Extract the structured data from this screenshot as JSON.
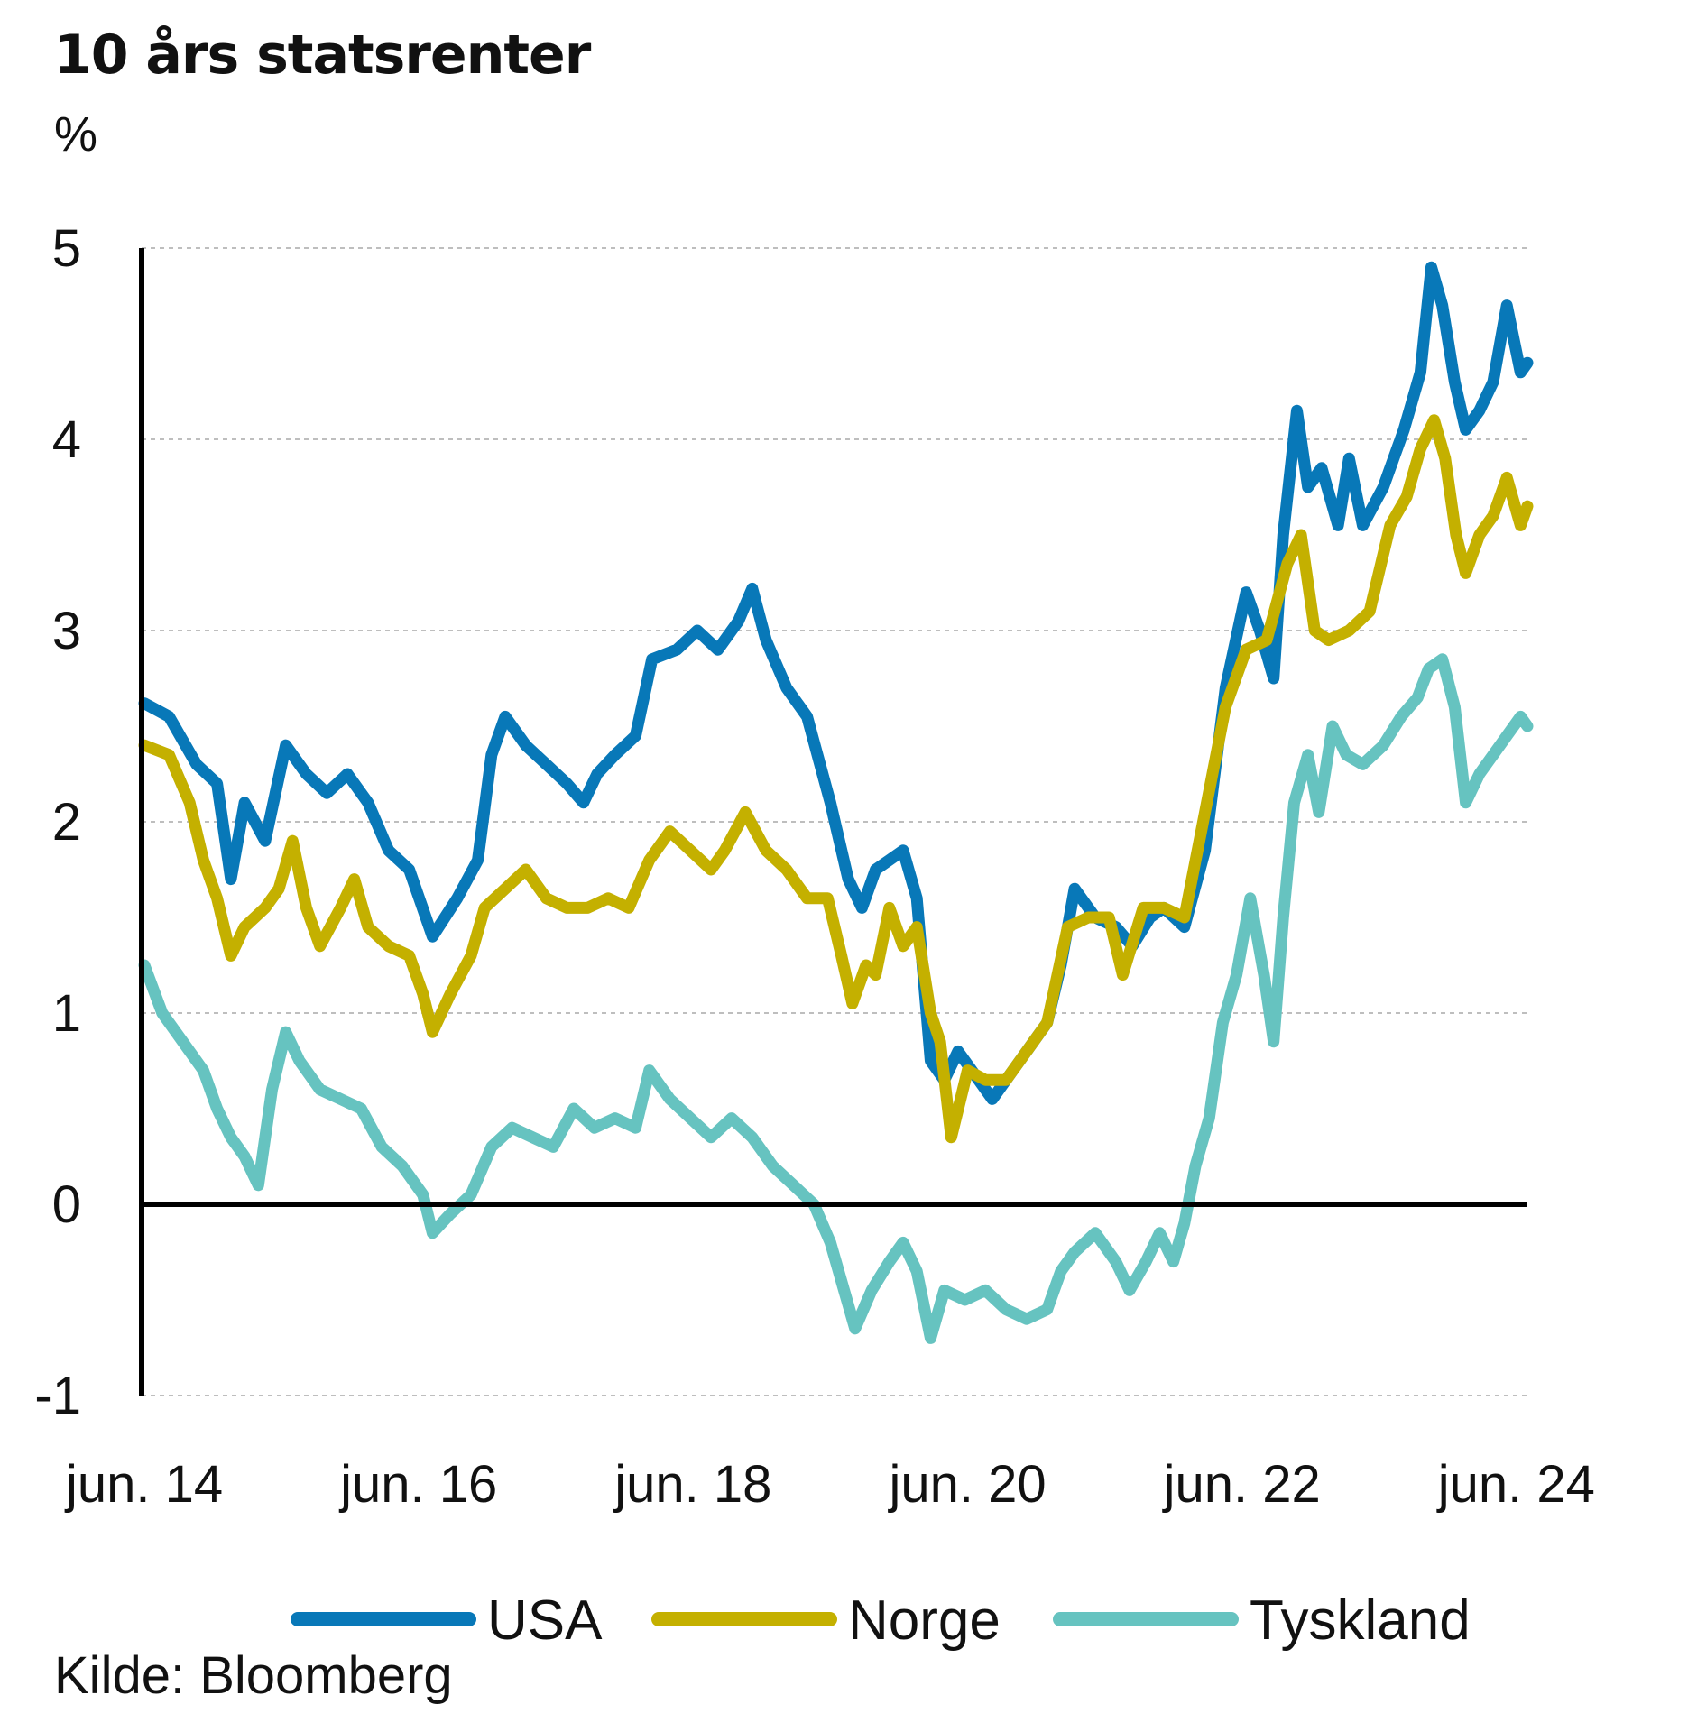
{
  "header": {
    "title": "10 års statsrenter",
    "unit": "%"
  },
  "footer": {
    "source": "Kilde: Bloomberg"
  },
  "chart_data": {
    "type": "line",
    "title": "10 års statsrenter",
    "ylabel": "%",
    "xlabel": "",
    "ylim": [
      -1,
      5
    ],
    "yticks": [
      "5",
      "4",
      "3",
      "2",
      "1",
      "0",
      "-1"
    ],
    "xlim": [
      2014.4,
      2024.5
    ],
    "xticks": [
      {
        "label": "jun. 14",
        "x": 2014.42
      },
      {
        "label": "jun. 16",
        "x": 2016.42
      },
      {
        "label": "jun. 18",
        "x": 2018.42
      },
      {
        "label": "jun. 20",
        "x": 2020.42
      },
      {
        "label": "jun. 22",
        "x": 2022.42
      },
      {
        "label": "jun. 24",
        "x": 2024.42
      }
    ],
    "grid": true,
    "legend": "bottom",
    "series": [
      {
        "name": "USA",
        "color": "#0878b8",
        "points": [
          [
            2014.42,
            2.62
          ],
          [
            2014.6,
            2.55
          ],
          [
            2014.8,
            2.3
          ],
          [
            2014.95,
            2.2
          ],
          [
            2015.05,
            1.7
          ],
          [
            2015.15,
            2.1
          ],
          [
            2015.3,
            1.9
          ],
          [
            2015.45,
            2.4
          ],
          [
            2015.6,
            2.25
          ],
          [
            2015.75,
            2.15
          ],
          [
            2015.9,
            2.25
          ],
          [
            2016.05,
            2.1
          ],
          [
            2016.2,
            1.85
          ],
          [
            2016.35,
            1.75
          ],
          [
            2016.52,
            1.4
          ],
          [
            2016.7,
            1.6
          ],
          [
            2016.85,
            1.8
          ],
          [
            2016.95,
            2.35
          ],
          [
            2017.05,
            2.55
          ],
          [
            2017.2,
            2.4
          ],
          [
            2017.35,
            2.3
          ],
          [
            2017.5,
            2.2
          ],
          [
            2017.62,
            2.1
          ],
          [
            2017.72,
            2.25
          ],
          [
            2017.85,
            2.35
          ],
          [
            2018.0,
            2.45
          ],
          [
            2018.12,
            2.85
          ],
          [
            2018.3,
            2.9
          ],
          [
            2018.45,
            3.0
          ],
          [
            2018.6,
            2.9
          ],
          [
            2018.75,
            3.05
          ],
          [
            2018.85,
            3.22
          ],
          [
            2018.95,
            2.95
          ],
          [
            2019.1,
            2.7
          ],
          [
            2019.25,
            2.55
          ],
          [
            2019.42,
            2.1
          ],
          [
            2019.55,
            1.7
          ],
          [
            2019.65,
            1.55
          ],
          [
            2019.75,
            1.75
          ],
          [
            2019.85,
            1.8
          ],
          [
            2019.95,
            1.85
          ],
          [
            2020.05,
            1.6
          ],
          [
            2020.15,
            0.75
          ],
          [
            2020.25,
            0.65
          ],
          [
            2020.35,
            0.8
          ],
          [
            2020.5,
            0.65
          ],
          [
            2020.6,
            0.55
          ],
          [
            2020.75,
            0.7
          ],
          [
            2020.9,
            0.85
          ],
          [
            2021.0,
            0.95
          ],
          [
            2021.1,
            1.25
          ],
          [
            2021.2,
            1.65
          ],
          [
            2021.35,
            1.5
          ],
          [
            2021.5,
            1.45
          ],
          [
            2021.62,
            1.35
          ],
          [
            2021.75,
            1.5
          ],
          [
            2021.85,
            1.55
          ],
          [
            2022.0,
            1.45
          ],
          [
            2022.15,
            1.85
          ],
          [
            2022.3,
            2.7
          ],
          [
            2022.45,
            3.2
          ],
          [
            2022.55,
            3.0
          ],
          [
            2022.65,
            2.75
          ],
          [
            2022.72,
            3.5
          ],
          [
            2022.82,
            4.15
          ],
          [
            2022.9,
            3.75
          ],
          [
            2023.0,
            3.85
          ],
          [
            2023.12,
            3.55
          ],
          [
            2023.2,
            3.9
          ],
          [
            2023.3,
            3.55
          ],
          [
            2023.45,
            3.75
          ],
          [
            2023.6,
            4.05
          ],
          [
            2023.72,
            4.35
          ],
          [
            2023.8,
            4.9
          ],
          [
            2023.88,
            4.7
          ],
          [
            2023.97,
            4.3
          ],
          [
            2024.05,
            4.05
          ],
          [
            2024.15,
            4.15
          ],
          [
            2024.25,
            4.3
          ],
          [
            2024.35,
            4.7
          ],
          [
            2024.45,
            4.35
          ],
          [
            2024.5,
            4.4
          ]
        ]
      },
      {
        "name": "Norge",
        "color": "#c4b000",
        "points": [
          [
            2014.42,
            2.4
          ],
          [
            2014.6,
            2.35
          ],
          [
            2014.75,
            2.1
          ],
          [
            2014.85,
            1.8
          ],
          [
            2014.95,
            1.6
          ],
          [
            2015.05,
            1.3
          ],
          [
            2015.15,
            1.45
          ],
          [
            2015.3,
            1.55
          ],
          [
            2015.4,
            1.65
          ],
          [
            2015.5,
            1.9
          ],
          [
            2015.6,
            1.55
          ],
          [
            2015.7,
            1.35
          ],
          [
            2015.85,
            1.55
          ],
          [
            2015.95,
            1.7
          ],
          [
            2016.05,
            1.45
          ],
          [
            2016.2,
            1.35
          ],
          [
            2016.35,
            1.3
          ],
          [
            2016.45,
            1.1
          ],
          [
            2016.52,
            0.9
          ],
          [
            2016.65,
            1.1
          ],
          [
            2016.8,
            1.3
          ],
          [
            2016.9,
            1.55
          ],
          [
            2017.05,
            1.65
          ],
          [
            2017.2,
            1.75
          ],
          [
            2017.35,
            1.6
          ],
          [
            2017.5,
            1.55
          ],
          [
            2017.65,
            1.55
          ],
          [
            2017.8,
            1.6
          ],
          [
            2017.95,
            1.55
          ],
          [
            2018.1,
            1.8
          ],
          [
            2018.25,
            1.95
          ],
          [
            2018.4,
            1.85
          ],
          [
            2018.55,
            1.75
          ],
          [
            2018.65,
            1.85
          ],
          [
            2018.8,
            2.05
          ],
          [
            2018.95,
            1.85
          ],
          [
            2019.1,
            1.75
          ],
          [
            2019.25,
            1.6
          ],
          [
            2019.4,
            1.6
          ],
          [
            2019.5,
            1.3
          ],
          [
            2019.58,
            1.05
          ],
          [
            2019.68,
            1.25
          ],
          [
            2019.75,
            1.2
          ],
          [
            2019.85,
            1.55
          ],
          [
            2019.95,
            1.35
          ],
          [
            2020.05,
            1.45
          ],
          [
            2020.15,
            1.0
          ],
          [
            2020.22,
            0.85
          ],
          [
            2020.3,
            0.35
          ],
          [
            2020.42,
            0.7
          ],
          [
            2020.55,
            0.65
          ],
          [
            2020.7,
            0.65
          ],
          [
            2020.85,
            0.8
          ],
          [
            2021.0,
            0.95
          ],
          [
            2021.15,
            1.45
          ],
          [
            2021.3,
            1.5
          ],
          [
            2021.45,
            1.5
          ],
          [
            2021.55,
            1.2
          ],
          [
            2021.7,
            1.55
          ],
          [
            2021.85,
            1.55
          ],
          [
            2022.0,
            1.5
          ],
          [
            2022.15,
            2.05
          ],
          [
            2022.3,
            2.6
          ],
          [
            2022.45,
            2.9
          ],
          [
            2022.6,
            2.95
          ],
          [
            2022.75,
            3.35
          ],
          [
            2022.85,
            3.5
          ],
          [
            2022.95,
            3.0
          ],
          [
            2023.05,
            2.95
          ],
          [
            2023.2,
            3.0
          ],
          [
            2023.35,
            3.1
          ],
          [
            2023.5,
            3.55
          ],
          [
            2023.62,
            3.7
          ],
          [
            2023.72,
            3.95
          ],
          [
            2023.82,
            4.1
          ],
          [
            2023.9,
            3.9
          ],
          [
            2023.98,
            3.5
          ],
          [
            2024.05,
            3.3
          ],
          [
            2024.15,
            3.5
          ],
          [
            2024.25,
            3.6
          ],
          [
            2024.35,
            3.8
          ],
          [
            2024.45,
            3.55
          ],
          [
            2024.5,
            3.65
          ]
        ]
      },
      {
        "name": "Tyskland",
        "color": "#66c3c0",
        "points": [
          [
            2014.42,
            1.25
          ],
          [
            2014.55,
            1.0
          ],
          [
            2014.7,
            0.85
          ],
          [
            2014.85,
            0.7
          ],
          [
            2014.95,
            0.5
          ],
          [
            2015.05,
            0.35
          ],
          [
            2015.15,
            0.25
          ],
          [
            2015.25,
            0.1
          ],
          [
            2015.35,
            0.6
          ],
          [
            2015.45,
            0.9
          ],
          [
            2015.55,
            0.75
          ],
          [
            2015.7,
            0.6
          ],
          [
            2015.85,
            0.55
          ],
          [
            2016.0,
            0.5
          ],
          [
            2016.15,
            0.3
          ],
          [
            2016.3,
            0.2
          ],
          [
            2016.45,
            0.05
          ],
          [
            2016.52,
            -0.15
          ],
          [
            2016.65,
            -0.05
          ],
          [
            2016.8,
            0.05
          ],
          [
            2016.95,
            0.3
          ],
          [
            2017.1,
            0.4
          ],
          [
            2017.25,
            0.35
          ],
          [
            2017.4,
            0.3
          ],
          [
            2017.55,
            0.5
          ],
          [
            2017.7,
            0.4
          ],
          [
            2017.85,
            0.45
          ],
          [
            2018.0,
            0.4
          ],
          [
            2018.1,
            0.7
          ],
          [
            2018.25,
            0.55
          ],
          [
            2018.4,
            0.45
          ],
          [
            2018.55,
            0.35
          ],
          [
            2018.7,
            0.45
          ],
          [
            2018.85,
            0.35
          ],
          [
            2019.0,
            0.2
          ],
          [
            2019.15,
            0.1
          ],
          [
            2019.3,
            0.0
          ],
          [
            2019.42,
            -0.2
          ],
          [
            2019.52,
            -0.45
          ],
          [
            2019.6,
            -0.65
          ],
          [
            2019.72,
            -0.45
          ],
          [
            2019.85,
            -0.3
          ],
          [
            2019.95,
            -0.2
          ],
          [
            2020.05,
            -0.35
          ],
          [
            2020.15,
            -0.7
          ],
          [
            2020.25,
            -0.45
          ],
          [
            2020.4,
            -0.5
          ],
          [
            2020.55,
            -0.45
          ],
          [
            2020.7,
            -0.55
          ],
          [
            2020.85,
            -0.6
          ],
          [
            2021.0,
            -0.55
          ],
          [
            2021.1,
            -0.35
          ],
          [
            2021.2,
            -0.25
          ],
          [
            2021.35,
            -0.15
          ],
          [
            2021.5,
            -0.3
          ],
          [
            2021.6,
            -0.45
          ],
          [
            2021.72,
            -0.3
          ],
          [
            2021.82,
            -0.15
          ],
          [
            2021.92,
            -0.3
          ],
          [
            2022.0,
            -0.1
          ],
          [
            2022.08,
            0.2
          ],
          [
            2022.18,
            0.45
          ],
          [
            2022.28,
            0.95
          ],
          [
            2022.38,
            1.2
          ],
          [
            2022.48,
            1.6
          ],
          [
            2022.58,
            1.2
          ],
          [
            2022.65,
            0.85
          ],
          [
            2022.72,
            1.5
          ],
          [
            2022.8,
            2.1
          ],
          [
            2022.9,
            2.35
          ],
          [
            2022.98,
            2.05
          ],
          [
            2023.08,
            2.5
          ],
          [
            2023.18,
            2.35
          ],
          [
            2023.3,
            2.3
          ],
          [
            2023.45,
            2.4
          ],
          [
            2023.58,
            2.55
          ],
          [
            2023.7,
            2.65
          ],
          [
            2023.78,
            2.8
          ],
          [
            2023.88,
            2.85
          ],
          [
            2023.97,
            2.6
          ],
          [
            2024.05,
            2.1
          ],
          [
            2024.15,
            2.25
          ],
          [
            2024.25,
            2.35
          ],
          [
            2024.35,
            2.45
          ],
          [
            2024.45,
            2.55
          ],
          [
            2024.5,
            2.5
          ]
        ]
      }
    ]
  }
}
